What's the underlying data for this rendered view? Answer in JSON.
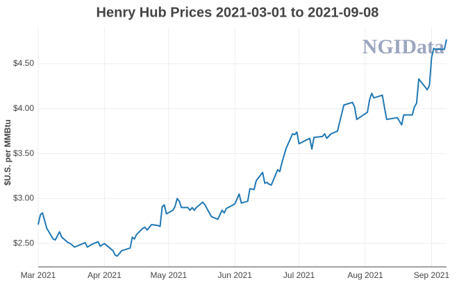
{
  "chart_data": {
    "type": "line",
    "title": "Henry Hub Prices 2021-03-01 to 2021-09-08",
    "y_label": "$U.S. per MMBtu",
    "watermark": "NGIData",
    "grid": true,
    "xlim": [
      "2021-03-01",
      "2021-09-08"
    ],
    "xticks": [
      {
        "value": "2021-03-01",
        "label": "Mar 2021"
      },
      {
        "value": "2021-04-01",
        "label": "Apr 2021"
      },
      {
        "value": "2021-05-01",
        "label": "May 2021"
      },
      {
        "value": "2021-06-01",
        "label": "Jun 2021"
      },
      {
        "value": "2021-07-01",
        "label": "Jul 2021"
      },
      {
        "value": "2021-08-01",
        "label": "Aug 2021"
      },
      {
        "value": "2021-09-01",
        "label": "Sep 2021"
      }
    ],
    "ylim": [
      2.24,
      4.9
    ],
    "yticks": [
      {
        "value": 2.5,
        "label": "$2.50"
      },
      {
        "value": 3,
        "label": "$3.00"
      },
      {
        "value": 3.5,
        "label": "$3.50"
      },
      {
        "value": 4,
        "label": "$4.00"
      },
      {
        "value": 4.5,
        "label": "$4.50"
      }
    ],
    "x": [
      "2021-03-01",
      "2021-03-02",
      "2021-03-03",
      "2021-03-05",
      "2021-03-08",
      "2021-03-09",
      "2021-03-11",
      "2021-03-12",
      "2021-03-15",
      "2021-03-16",
      "2021-03-18",
      "2021-03-22",
      "2021-03-23",
      "2021-03-24",
      "2021-03-26",
      "2021-03-29",
      "2021-03-30",
      "2021-04-01",
      "2021-04-05",
      "2021-04-06",
      "2021-04-07",
      "2021-04-09",
      "2021-04-13",
      "2021-04-14",
      "2021-04-15",
      "2021-04-16",
      "2021-04-19",
      "2021-04-20",
      "2021-04-21",
      "2021-04-23",
      "2021-04-26",
      "2021-04-27",
      "2021-04-28",
      "2021-04-29",
      "2021-04-30",
      "2021-05-03",
      "2021-05-04",
      "2021-05-05",
      "2021-05-06",
      "2021-05-07",
      "2021-05-10",
      "2021-05-11",
      "2021-05-12",
      "2021-05-13",
      "2021-05-14",
      "2021-05-17",
      "2021-05-18",
      "2021-05-21",
      "2021-05-24",
      "2021-05-26",
      "2021-05-27",
      "2021-05-28",
      "2021-06-01",
      "2021-06-03",
      "2021-06-04",
      "2021-06-07",
      "2021-06-08",
      "2021-06-10",
      "2021-06-11",
      "2021-06-14",
      "2021-06-15",
      "2021-06-16",
      "2021-06-17",
      "2021-06-18",
      "2021-06-21",
      "2021-06-22",
      "2021-06-23",
      "2021-06-25",
      "2021-06-28",
      "2021-06-29",
      "2021-06-30",
      "2021-07-01",
      "2021-07-06",
      "2021-07-07",
      "2021-07-08",
      "2021-07-12",
      "2021-07-13",
      "2021-07-14",
      "2021-07-16",
      "2021-07-19",
      "2021-07-20",
      "2021-07-22",
      "2021-07-26",
      "2021-07-27",
      "2021-07-28",
      "2021-08-02",
      "2021-08-03",
      "2021-08-04",
      "2021-08-05",
      "2021-08-09",
      "2021-08-10",
      "2021-08-11",
      "2021-08-16",
      "2021-08-18",
      "2021-08-19",
      "2021-08-23",
      "2021-08-24",
      "2021-08-25",
      "2021-08-26",
      "2021-08-30",
      "2021-08-31",
      "2021-09-01",
      "2021-09-02",
      "2021-09-03",
      "2021-09-07",
      "2021-09-08"
    ],
    "series": [
      {
        "name": "Henry Hub",
        "color": "#1f77b4",
        "values": [
          2.71,
          2.82,
          2.84,
          2.67,
          2.55,
          2.54,
          2.63,
          2.57,
          2.51,
          2.5,
          2.46,
          2.5,
          2.51,
          2.46,
          2.49,
          2.52,
          2.47,
          2.5,
          2.42,
          2.37,
          2.36,
          2.42,
          2.45,
          2.57,
          2.55,
          2.6,
          2.67,
          2.68,
          2.65,
          2.71,
          2.7,
          2.69,
          2.91,
          2.93,
          2.83,
          2.87,
          2.91,
          3.0,
          2.97,
          2.9,
          2.9,
          2.87,
          2.9,
          2.87,
          2.9,
          2.96,
          2.93,
          2.8,
          2.77,
          2.87,
          2.84,
          2.89,
          2.94,
          3.05,
          2.95,
          2.97,
          3.11,
          3.1,
          3.2,
          3.29,
          3.17,
          3.18,
          3.16,
          3.15,
          3.32,
          3.3,
          3.4,
          3.56,
          3.72,
          3.71,
          3.74,
          3.61,
          3.67,
          3.55,
          3.68,
          3.69,
          3.72,
          3.67,
          3.72,
          3.75,
          3.85,
          4.04,
          4.07,
          4.02,
          3.88,
          3.96,
          4.1,
          4.17,
          4.12,
          4.15,
          4.01,
          3.88,
          3.9,
          3.82,
          3.93,
          3.93,
          4.02,
          4.06,
          4.33,
          4.21,
          4.26,
          4.57,
          4.67,
          4.66,
          4.66,
          4.77
        ]
      }
    ]
  }
}
